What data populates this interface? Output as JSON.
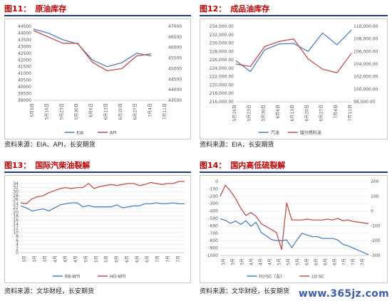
{
  "watermark": "www.365jz.com",
  "charts": [
    {
      "num": "图11：",
      "title": "原油库存",
      "source": "资料来源：EIA、API，长安期货",
      "chart_data": {
        "type": "line",
        "x": [
          "5月9日",
          "5月16日",
          "5月23日",
          "5月30日",
          "6月6日",
          "6月13日",
          "6月20日",
          "6月27日",
          "7月4日",
          "7月11日"
        ],
        "x_ticks": [
          "5月9日",
          "5月23日",
          "6月6日",
          "6月20日",
          "7月4日"
        ],
        "x_ticks_extra": [
          "5月16日",
          "5月30日",
          "6月13日",
          "6月27日",
          "7月11日"
        ],
        "left_axis": {
          "min": 39000,
          "max": 44500,
          "step": 500
        },
        "right_axis": {
          "min": 43500,
          "max": 47000,
          "step": 500
        },
        "series": [
          {
            "name": "EIA",
            "axis": "left",
            "color": "#4f81bd",
            "values": [
              44300,
              44000,
              43500,
              43200,
              42000,
              41500,
              41800,
              42500,
              42300,
              null
            ]
          },
          {
            "name": "API",
            "axis": "right",
            "color": "#c0504d",
            "values": [
              46800,
              46500,
              46200,
              46200,
              45300,
              44900,
              45000,
              45600,
              45700,
              null
            ]
          }
        ],
        "legend": "bottom"
      }
    },
    {
      "num": "图12：",
      "title": "成品油库存",
      "source": "资料来源：EIA，长安期货",
      "chart_data": {
        "type": "line",
        "x": [
          "5月16日",
          "5月23日",
          "5月30日",
          "6月6日",
          "6月13日",
          "6月20日",
          "6月27日",
          "7月4日",
          "7月11日"
        ],
        "left_axis": {
          "min": 216000,
          "max": 234000,
          "step": 2000,
          "format": "dec2"
        },
        "right_axis": {
          "min": 98000,
          "max": 110000,
          "step": 2000,
          "format": "dec2"
        },
        "series": [
          {
            "name": "汽油",
            "axis": "left",
            "color": "#4f81bd",
            "values": [
              225800,
              223200,
              228400,
              229800,
              229900,
              228000,
              232400,
              229600,
              233100
            ]
          },
          {
            "name": "馏分燃料油",
            "axis": "right",
            "color": "#c0504d",
            "values": [
              104000,
              103600,
              106800,
              107600,
              108000,
              104800,
              103200,
              102600,
              105700
            ]
          }
        ],
        "legend": "bottom"
      }
    },
    {
      "num": "图13：",
      "title": "国际汽柴油裂解",
      "source": "资料来源：文华财经，长安期货",
      "chart_data": {
        "type": "line",
        "x_count": 30,
        "x_ticks": [
          "3月",
          "3月",
          "3月",
          "4月",
          "4月",
          "4月",
          "5月",
          "5月",
          "5月",
          "6月",
          "6月",
          "6月",
          "6月",
          "7月",
          "7月",
          "7月"
        ],
        "left_axis": {
          "min": 0,
          "max": 35,
          "step": 2
        },
        "series": [
          {
            "name": "RB-WTI",
            "axis": "left",
            "color": "#4f81bd",
            "values": [
              23,
              22,
              20.5,
              21,
              21.5,
              20.5,
              22,
              23.5,
              24,
              24.5,
              24.5,
              22.5,
              23.2,
              22.5,
              22.5,
              22.5,
              22.5,
              23.5,
              22,
              22.5,
              23,
              23,
              24,
              24,
              24.5,
              24,
              24.2,
              24.5,
              24,
              24
            ]
          },
          {
            "name": "HO-WTI",
            "axis": "left",
            "color": "#c0504d",
            "values": [
              24.5,
              24,
              26.5,
              27.5,
              28,
              29.5,
              30.5,
              31.5,
              32,
              31.5,
              32,
              32,
              34,
              31.5,
              32.5,
              33,
              33.5,
              33,
              33.5,
              34,
              34,
              33,
              33.5,
              34.5,
              34,
              33.5,
              34,
              34,
              35,
              35
            ]
          }
        ],
        "legend": "bottom"
      }
    },
    {
      "num": "图14：",
      "title": "国内高低硫裂解",
      "source": "资料来源：文华财经，长安期货",
      "chart_data": {
        "type": "line",
        "x_count": 30,
        "x_ticks": [
          "3月",
          "3月",
          "3月",
          "4月",
          "4月",
          "4月",
          "5月",
          "5月",
          "5月",
          "6月",
          "6月",
          "6月",
          "6月",
          "7月",
          "7月",
          "7月"
        ],
        "left_axis": {
          "min": -1000,
          "max": 0,
          "step": 100
        },
        "right_axis": {
          "min": -300,
          "max": 200,
          "step": 100
        },
        "series": [
          {
            "name": "FU-SC（左）",
            "axis": "left",
            "color": "#4f81bd",
            "values": [
              -505,
              -525,
              -565,
              -535,
              -580,
              -530,
              -605,
              -550,
              -690,
              -735,
              -785,
              -800,
              -800,
              -790,
              -895,
              -790,
              -700,
              -725,
              -745,
              -745,
              -770,
              -770,
              -770,
              -790,
              -850,
              -870,
              -900,
              -930,
              -960,
              -990
            ]
          },
          {
            "name": "LU-SC",
            "axis": "right",
            "color": "#c0504d",
            "values": [
              100,
              175,
              135,
              85,
              20,
              -30,
              -10,
              -35,
              -85,
              -105,
              -125,
              -145,
              -260,
              55,
              -60,
              -60,
              -60,
              -55,
              -60,
              -60,
              -60,
              -55,
              -60,
              -50,
              -65,
              -60,
              -70,
              -75,
              -80,
              -85
            ]
          }
        ],
        "legend": "bottom"
      }
    }
  ]
}
